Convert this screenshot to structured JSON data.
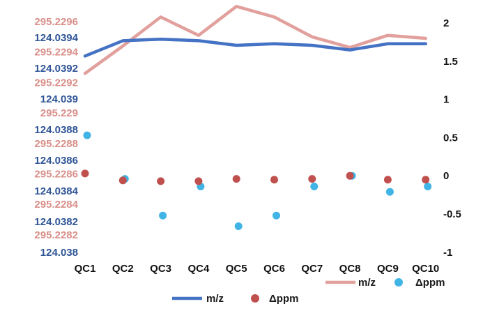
{
  "chart_data": {
    "type": "line",
    "categories": [
      "QC1",
      "QC2",
      "QC3",
      "QC4",
      "QC5",
      "QC6",
      "QC7",
      "QC8",
      "QC9",
      "QC10"
    ],
    "left_axis_pink": {
      "labels": [
        "295.2296",
        "295.2294",
        "295.2292",
        "295.229",
        "295.2288",
        "295.2286",
        "295.2284",
        "295.2282"
      ],
      "ylim": [
        295.2281,
        295.2297
      ]
    },
    "left_axis_blue": {
      "labels": [
        "124.0394",
        "124.0392",
        "124.039",
        "124.0388",
        "124.0386",
        "124.0384",
        "124.0382",
        "124.038"
      ],
      "ylim": [
        124.038,
        124.0395
      ]
    },
    "right_axis": {
      "labels": [
        "2",
        "1.5",
        "1",
        "0.5",
        "0",
        "-0.5",
        "-1"
      ],
      "ylim": [
        -1.1,
        2.1
      ]
    },
    "series": [
      {
        "name": "m/z",
        "kind": "line",
        "axis": "pink",
        "color": "#e2a09d",
        "values": [
          295.22926,
          295.22944,
          295.22963,
          295.22951,
          295.2297,
          295.22963,
          295.2295,
          295.22943,
          295.22951,
          295.22949
        ]
      },
      {
        "name": "Δppm",
        "kind": "scatter",
        "axis": "right",
        "color": "#41b4e6",
        "values": [
          0.53,
          -0.04,
          -0.52,
          -0.14,
          -0.66,
          -0.52,
          -0.14,
          0.0,
          -0.21,
          -0.14
        ]
      },
      {
        "name": "m/z",
        "kind": "line",
        "axis": "blue",
        "color": "#4472c4",
        "values": [
          124.03928,
          124.03938,
          124.03939,
          124.03938,
          124.03935,
          124.03936,
          124.03935,
          124.03932,
          124.03936,
          124.03936
        ]
      },
      {
        "name": "Δppm",
        "kind": "scatter",
        "axis": "right",
        "color": "#c0504d",
        "values": [
          0.03,
          -0.06,
          -0.07,
          -0.07,
          -0.04,
          -0.05,
          -0.04,
          0.0,
          -0.05,
          -0.05
        ]
      }
    ],
    "legend_row1": [
      {
        "label": "m/z",
        "series": 0
      },
      {
        "label": "Δppm",
        "series": 1
      }
    ],
    "legend_row2": [
      {
        "label": "m/z",
        "series": 2
      },
      {
        "label": "Δppm",
        "series": 3
      }
    ]
  }
}
